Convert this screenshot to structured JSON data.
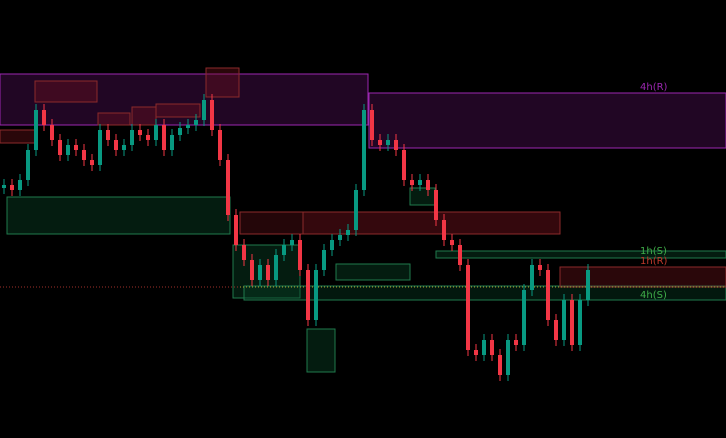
{
  "chart_data": {
    "type": "candlestick",
    "ylim": [
      0,
      438
    ],
    "up_color": "#089981",
    "down_color": "#f23645",
    "open": [
      250,
      253,
      248,
      258,
      288,
      328,
      313,
      298,
      283,
      293,
      288,
      278,
      273,
      308,
      298,
      288,
      293,
      308,
      303,
      298,
      313,
      288,
      303,
      310,
      313,
      318,
      338,
      308,
      278,
      223,
      193,
      178,
      158,
      173,
      158,
      183,
      193,
      198,
      168,
      118,
      168,
      188,
      198,
      203,
      208,
      248,
      328,
      298,
      293,
      298,
      288,
      258,
      253,
      258,
      248,
      218,
      198,
      193,
      173,
      88,
      83,
      98,
      83,
      63,
      98,
      93,
      148,
      173,
      168,
      118,
      98,
      138,
      93,
      138
    ],
    "high": [
      259,
      259,
      264,
      294,
      334,
      334,
      319,
      304,
      299,
      299,
      294,
      284,
      314,
      314,
      304,
      299,
      314,
      314,
      309,
      319,
      319,
      309,
      316,
      319,
      324,
      344,
      344,
      314,
      284,
      229,
      199,
      184,
      179,
      179,
      189,
      199,
      204,
      204,
      174,
      174,
      194,
      204,
      209,
      214,
      254,
      334,
      334,
      304,
      304,
      304,
      294,
      264,
      264,
      264,
      254,
      224,
      204,
      199,
      179,
      94,
      104,
      104,
      89,
      104,
      104,
      154,
      179,
      179,
      174,
      124,
      144,
      144,
      144,
      174
    ],
    "low": [
      244,
      242,
      242,
      252,
      282,
      307,
      292,
      277,
      277,
      282,
      272,
      267,
      267,
      292,
      282,
      282,
      287,
      297,
      292,
      292,
      282,
      282,
      297,
      304,
      307,
      312,
      302,
      272,
      217,
      187,
      172,
      152,
      152,
      152,
      152,
      177,
      187,
      162,
      112,
      112,
      162,
      182,
      192,
      197,
      202,
      242,
      292,
      287,
      287,
      282,
      252,
      247,
      247,
      242,
      212,
      192,
      187,
      167,
      82,
      77,
      77,
      77,
      57,
      57,
      87,
      87,
      142,
      162,
      112,
      92,
      92,
      87,
      87,
      132
    ],
    "close": [
      253,
      248,
      258,
      288,
      328,
      313,
      298,
      283,
      293,
      288,
      278,
      273,
      308,
      298,
      288,
      293,
      308,
      303,
      298,
      313,
      288,
      303,
      310,
      313,
      318,
      338,
      308,
      278,
      223,
      193,
      178,
      158,
      173,
      158,
      183,
      193,
      198,
      168,
      118,
      168,
      188,
      198,
      203,
      208,
      248,
      328,
      298,
      293,
      298,
      288,
      258,
      253,
      258,
      248,
      218,
      198,
      193,
      173,
      88,
      83,
      98,
      83,
      63,
      98,
      93,
      148,
      173,
      168,
      118,
      98,
      138,
      93,
      138,
      168
    ],
    "annotations": [
      "4h(R)",
      "1h(S)",
      "1h(R)",
      "4h(S)"
    ]
  }
}
